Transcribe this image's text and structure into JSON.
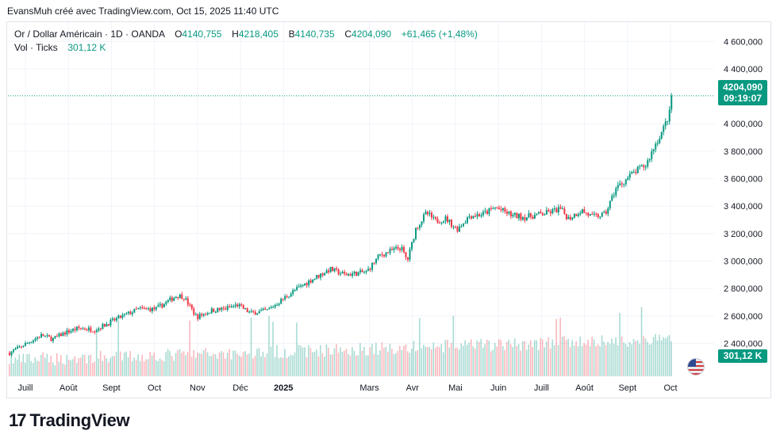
{
  "header": {
    "text": "EvansMuh créé avec TradingView.com, Oct 15, 2025 11:40 UTC"
  },
  "legend": {
    "symbol": "Or / Dollar Américain · 1D · OANDA",
    "open_label": "O",
    "open": "4140,755",
    "high_label": "H",
    "high": "4218,405",
    "low_label": "B",
    "low": "4140,735",
    "close_label": "C",
    "close": "4204,090",
    "change": "+61,465 (+1,48%)",
    "vol_label": "Vol · Ticks",
    "vol_value": "301,12 K"
  },
  "price_tag": {
    "price": "4204,090",
    "countdown": "09:19:07"
  },
  "volume_tag": {
    "value": "301,12 K"
  },
  "brand": {
    "logo": "17",
    "name": "TradingView"
  },
  "colors": {
    "up": "#089981",
    "down": "#f23645",
    "grid": "#f0f3fa",
    "text": "#131722"
  },
  "chart_data": {
    "type": "candlestick",
    "y_ticks": [
      "4 600,000",
      "4 400,000",
      "4 000,000",
      "3 800,000",
      "3 600,000",
      "3 400,000",
      "3 200,000",
      "3 000,000",
      "2 800,000",
      "2 600,000",
      "2 400,000"
    ],
    "y_tick_values": [
      4600,
      4400,
      4000,
      3800,
      3600,
      3400,
      3200,
      3000,
      2800,
      2600,
      2400
    ],
    "ylim": [
      2160,
      4740
    ],
    "x_ticks": [
      "Juill",
      "Août",
      "Sept",
      "Oct",
      "Nov",
      "Déc",
      "2025",
      "Mars",
      "Avr",
      "Mai",
      "Juin",
      "Juill",
      "Août",
      "Sept",
      "Oct"
    ],
    "x_tick_months": [
      0,
      1,
      2,
      3,
      4,
      5,
      6,
      8,
      9,
      10,
      11,
      12,
      13,
      14,
      15
    ],
    "x_start": "2024-07-01",
    "x_end": "2025-10-15",
    "close_anchors": [
      {
        "m": 0.0,
        "v": 2330
      },
      {
        "m": 0.4,
        "v": 2400
      },
      {
        "m": 0.75,
        "v": 2460
      },
      {
        "m": 1.0,
        "v": 2430
      },
      {
        "m": 1.3,
        "v": 2480
      },
      {
        "m": 1.6,
        "v": 2510
      },
      {
        "m": 2.0,
        "v": 2500
      },
      {
        "m": 2.5,
        "v": 2580
      },
      {
        "m": 3.0,
        "v": 2650
      },
      {
        "m": 3.4,
        "v": 2650
      },
      {
        "m": 3.9,
        "v": 2750
      },
      {
        "m": 4.05,
        "v": 2740
      },
      {
        "m": 4.35,
        "v": 2590
      },
      {
        "m": 4.7,
        "v": 2640
      },
      {
        "m": 5.0,
        "v": 2650
      },
      {
        "m": 5.3,
        "v": 2680
      },
      {
        "m": 5.6,
        "v": 2620
      },
      {
        "m": 6.0,
        "v": 2640
      },
      {
        "m": 6.6,
        "v": 2780
      },
      {
        "m": 7.0,
        "v": 2860
      },
      {
        "m": 7.45,
        "v": 2940
      },
      {
        "m": 7.8,
        "v": 2900
      },
      {
        "m": 8.3,
        "v": 2920
      },
      {
        "m": 8.6,
        "v": 3040
      },
      {
        "m": 9.1,
        "v": 3100
      },
      {
        "m": 9.25,
        "v": 3000
      },
      {
        "m": 9.45,
        "v": 3240
      },
      {
        "m": 9.7,
        "v": 3350
      },
      {
        "m": 9.9,
        "v": 3290
      },
      {
        "m": 10.15,
        "v": 3310
      },
      {
        "m": 10.4,
        "v": 3230
      },
      {
        "m": 10.7,
        "v": 3330
      },
      {
        "m": 11.0,
        "v": 3340
      },
      {
        "m": 11.3,
        "v": 3390
      },
      {
        "m": 11.7,
        "v": 3330
      },
      {
        "m": 12.0,
        "v": 3320
      },
      {
        "m": 12.5,
        "v": 3350
      },
      {
        "m": 12.8,
        "v": 3380
      },
      {
        "m": 13.0,
        "v": 3310
      },
      {
        "m": 13.3,
        "v": 3370
      },
      {
        "m": 13.55,
        "v": 3320
      },
      {
        "m": 13.85,
        "v": 3340
      },
      {
        "m": 14.1,
        "v": 3530
      },
      {
        "m": 14.5,
        "v": 3640
      },
      {
        "m": 14.8,
        "v": 3700
      },
      {
        "m": 15.0,
        "v": 3840
      },
      {
        "m": 15.2,
        "v": 3960
      },
      {
        "m": 15.35,
        "v": 4080
      },
      {
        "m": 15.42,
        "v": 4204
      }
    ],
    "volume_ticks_value": "301,12 K",
    "last_close": 4204.09
  }
}
